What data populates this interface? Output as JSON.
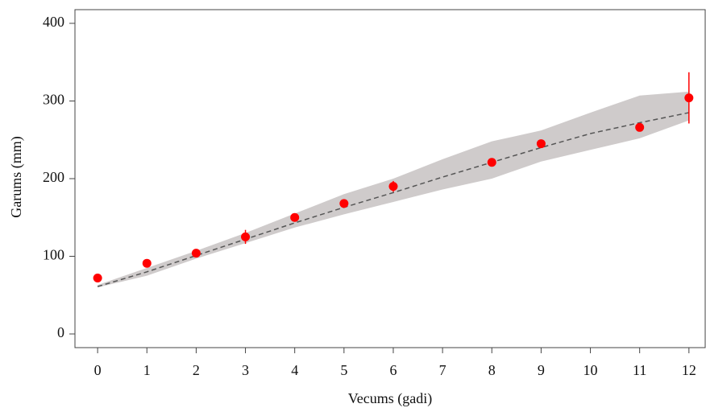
{
  "chart_data": {
    "type": "scatter",
    "x_label": "Vecums (gadi)",
    "y_label": "Garums  (mm)",
    "xlim": [
      -0.46,
      12.33
    ],
    "ylim": [
      -17.6,
      417.6
    ],
    "xticks": [
      0,
      1,
      2,
      3,
      4,
      5,
      6,
      7,
      8,
      9,
      10,
      11,
      12
    ],
    "yticks": [
      0,
      100,
      200,
      300,
      400
    ],
    "points": {
      "color": "#ff0000",
      "x": [
        0,
        1,
        2,
        3,
        4,
        5,
        6,
        8,
        9,
        11,
        12
      ],
      "y": [
        72,
        91,
        104,
        125,
        150,
        168,
        190,
        221,
        245,
        266,
        304
      ],
      "errors": [
        null,
        null,
        null,
        9,
        null,
        null,
        7,
        null,
        null,
        null,
        33
      ]
    },
    "fit": {
      "color": "#555555",
      "band_color": "#cfcbcb",
      "x": [
        0,
        1,
        2,
        3,
        4,
        5,
        6,
        7,
        8,
        9,
        10,
        11,
        12
      ],
      "y": [
        61,
        80,
        101,
        122,
        143,
        163,
        182,
        202,
        221,
        240,
        258,
        272,
        285
      ],
      "lower": [
        60,
        75,
        97,
        117,
        137,
        154,
        170,
        186,
        200,
        222,
        237,
        252,
        275
      ],
      "upper": [
        63,
        85,
        107,
        130,
        155,
        180,
        200,
        225,
        248,
        262,
        285,
        307,
        312
      ]
    }
  }
}
